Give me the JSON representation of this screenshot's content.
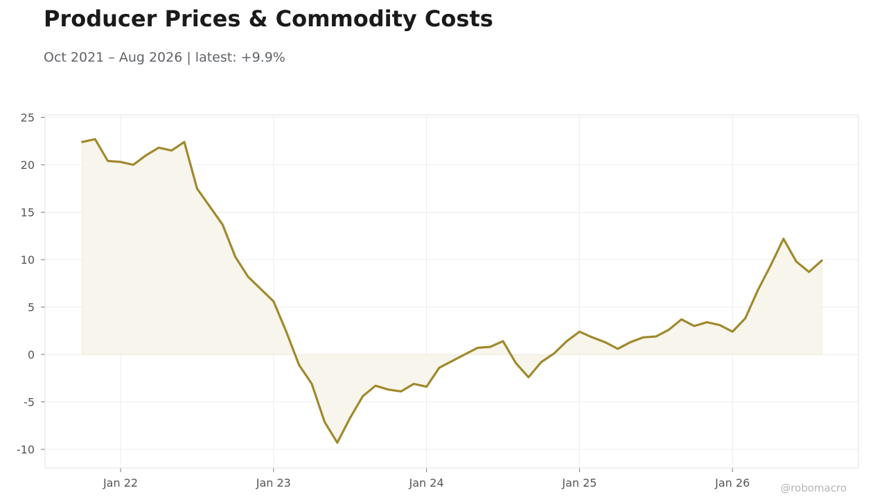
{
  "title": "Producer Prices & Commodity Costs",
  "subtitle": "Oct 2021 – Aug 2026 | latest: +9.9%",
  "watermark": "@robomacro",
  "colors": {
    "line": "#a0892c",
    "fill": "#f8f5ed",
    "grid": "#ececec",
    "frame": "#e2e2e2"
  },
  "chart_data": {
    "type": "area",
    "title": "Producer Prices & Commodity Costs",
    "xlabel": "",
    "ylabel": "",
    "ylim": [
      -12,
      25
    ],
    "grid": true,
    "legend": "none",
    "x_ticks": [
      {
        "label": "Jan 22",
        "date": "2022-01"
      },
      {
        "label": "Jan 23",
        "date": "2023-01"
      },
      {
        "label": "Jan 24",
        "date": "2024-01"
      },
      {
        "label": "Jan 25",
        "date": "2025-01"
      },
      {
        "label": "Jan 26",
        "date": "2026-01"
      }
    ],
    "y_ticks": [
      25,
      20,
      15,
      10,
      5,
      0,
      -5,
      -10
    ],
    "y_tick_labels": [
      "25",
      "20",
      "15",
      "10",
      "5",
      "0",
      "-5",
      "-10"
    ],
    "series": [
      {
        "dates": [
          "2021-10",
          "2021-11",
          "2021-12",
          "2022-01",
          "2022-02",
          "2022-03",
          "2022-04",
          "2022-05",
          "2022-06",
          "2022-07",
          "2022-08",
          "2022-09",
          "2022-10",
          "2022-11",
          "2022-12",
          "2023-01",
          "2023-02",
          "2023-03",
          "2023-04",
          "2023-05",
          "2023-06",
          "2023-07",
          "2023-08",
          "2023-09",
          "2023-10",
          "2023-11",
          "2023-12",
          "2024-01",
          "2024-02",
          "2024-03",
          "2024-04",
          "2024-05",
          "2024-06",
          "2024-07",
          "2024-08",
          "2024-09",
          "2024-10",
          "2024-11",
          "2024-12",
          "2025-01",
          "2025-02",
          "2025-03",
          "2025-04",
          "2025-05",
          "2025-06",
          "2025-07",
          "2025-08",
          "2025-09",
          "2025-10",
          "2025-11",
          "2025-12",
          "2026-01",
          "2026-02",
          "2026-03",
          "2026-04",
          "2026-05",
          "2026-06",
          "2026-07",
          "2026-08"
        ],
        "values": [
          22.4,
          22.7,
          20.4,
          20.3,
          20.0,
          21.0,
          21.8,
          21.5,
          22.4,
          17.5,
          15.6,
          13.7,
          10.3,
          8.2,
          6.9,
          5.6,
          2.4,
          -1.1,
          -3.1,
          -7.1,
          -9.3,
          -6.7,
          -4.4,
          -3.3,
          -3.7,
          -3.9,
          -3.1,
          -3.4,
          -1.4,
          -0.7,
          0.0,
          0.7,
          0.8,
          1.4,
          -0.9,
          -2.4,
          -0.8,
          0.1,
          1.4,
          2.4,
          1.8,
          1.3,
          0.6,
          1.3,
          1.8,
          1.9,
          2.6,
          3.7,
          3.0,
          3.4,
          3.1,
          2.4,
          3.8,
          6.8,
          9.4,
          12.2,
          9.8,
          8.7,
          9.9
        ]
      }
    ]
  }
}
